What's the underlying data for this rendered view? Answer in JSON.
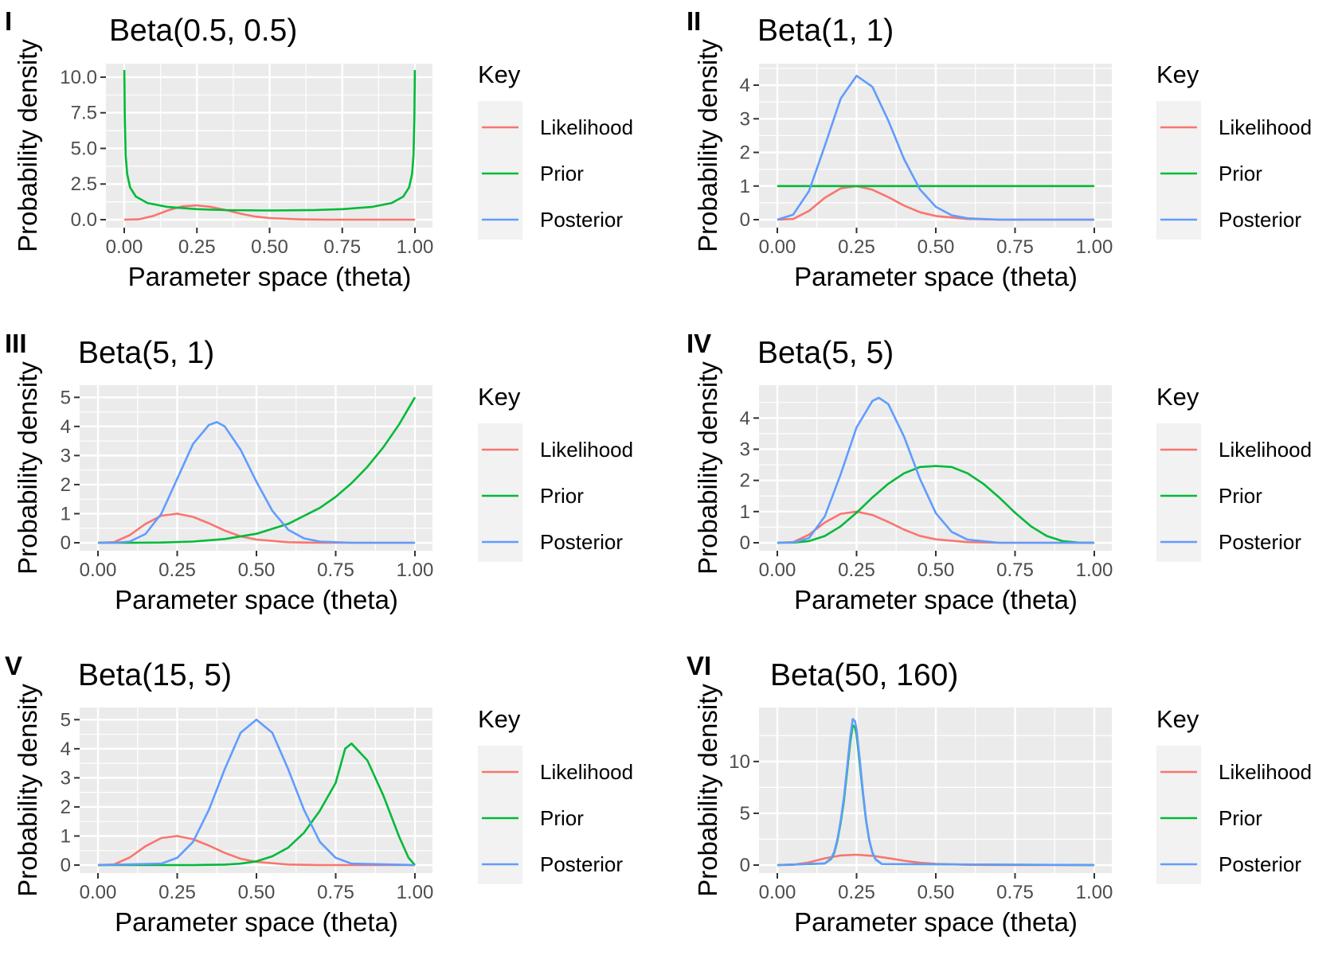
{
  "colors": {
    "likelihood": "#F8766D",
    "prior": "#00BA38",
    "posterior": "#619CFF",
    "panel_bg": "#EBEBEB",
    "grid": "#FFFFFF",
    "legend_key_bg": "#F2F2F2"
  },
  "chart_data": [
    {
      "type": "line",
      "tag": "I",
      "title": "Beta(0.5, 0.5)",
      "xlabel": "Parameter space (theta)",
      "ylabel": "Probability density",
      "xlim": [
        0,
        1
      ],
      "ylim": [
        0,
        10.5
      ],
      "xticks": [
        0,
        0.25,
        0.5,
        0.75,
        1
      ],
      "xtick_labels": [
        "0.00",
        "0.25",
        "0.50",
        "0.75",
        "1.00"
      ],
      "yticks": [
        0,
        2.5,
        5,
        7.5,
        10
      ],
      "ytick_labels": [
        "0.0",
        "2.5",
        "5.0",
        "7.5",
        "10.0"
      ],
      "legend": {
        "title": "Key",
        "position": "right",
        "entries": [
          "Likelihood",
          "Prior",
          "Posterior"
        ]
      },
      "grid": true,
      "series": [
        {
          "name": "Likelihood",
          "color": "likelihood",
          "x": [
            0,
            0.05,
            0.1,
            0.15,
            0.2,
            0.25,
            0.3,
            0.35,
            0.4,
            0.45,
            0.5,
            0.6,
            0.7,
            0.8,
            1.0
          ],
          "y": [
            0,
            0.02,
            0.26,
            0.65,
            0.93,
            1.0,
            0.89,
            0.67,
            0.42,
            0.22,
            0.11,
            0.02,
            0.0,
            0.0,
            0
          ]
        },
        {
          "name": "Prior",
          "color": "prior",
          "x": [
            0.0003,
            0.002,
            0.005,
            0.01,
            0.02,
            0.04,
            0.08,
            0.15,
            0.25,
            0.35,
            0.5,
            0.65,
            0.75,
            0.85,
            0.92,
            0.96,
            0.98,
            0.99,
            0.995,
            0.998,
            0.9997
          ],
          "y": [
            10.5,
            7.12,
            4.51,
            3.2,
            2.27,
            1.62,
            1.17,
            0.89,
            0.74,
            0.67,
            0.64,
            0.67,
            0.74,
            0.89,
            1.17,
            1.62,
            2.27,
            3.2,
            4.51,
            7.12,
            10.5
          ]
        },
        {
          "name": "Posterior",
          "color": "posterior",
          "x": [],
          "y": []
        }
      ]
    },
    {
      "type": "line",
      "tag": "II",
      "title": "Beta(1, 1)",
      "xlabel": "Parameter space (theta)",
      "ylabel": "Probability density",
      "xlim": [
        0,
        1
      ],
      "ylim": [
        0,
        4.45
      ],
      "xticks": [
        0,
        0.25,
        0.5,
        0.75,
        1
      ],
      "xtick_labels": [
        "0.00",
        "0.25",
        "0.50",
        "0.75",
        "1.00"
      ],
      "yticks": [
        0,
        1,
        2,
        3,
        4
      ],
      "ytick_labels": [
        "0",
        "1",
        "2",
        "3",
        "4"
      ],
      "legend": {
        "title": "Key",
        "position": "right",
        "entries": [
          "Likelihood",
          "Prior",
          "Posterior"
        ]
      },
      "grid": true,
      "series": [
        {
          "name": "Likelihood",
          "color": "likelihood",
          "x": [
            0,
            0.05,
            0.1,
            0.15,
            0.2,
            0.25,
            0.3,
            0.35,
            0.4,
            0.45,
            0.5,
            0.6,
            0.7,
            0.8,
            1.0
          ],
          "y": [
            0,
            0.02,
            0.26,
            0.65,
            0.93,
            1.0,
            0.89,
            0.67,
            0.42,
            0.22,
            0.11,
            0.02,
            0.0,
            0.0,
            0
          ]
        },
        {
          "name": "Prior",
          "color": "prior",
          "x": [
            0,
            1
          ],
          "y": [
            1,
            1
          ]
        },
        {
          "name": "Posterior",
          "color": "posterior",
          "x": [
            0,
            0.05,
            0.1,
            0.15,
            0.2,
            0.25,
            0.3,
            0.35,
            0.4,
            0.45,
            0.5,
            0.55,
            0.6,
            0.7,
            0.8,
            1.0
          ],
          "y": [
            0,
            0.15,
            0.85,
            2.2,
            3.6,
            4.28,
            3.95,
            2.95,
            1.8,
            0.9,
            0.38,
            0.13,
            0.04,
            0.0,
            0.0,
            0
          ]
        }
      ]
    },
    {
      "type": "line",
      "tag": "III",
      "title": "Beta(5, 1)",
      "xlabel": "Parameter space (theta)",
      "ylabel": "Probability density",
      "xlim": [
        0,
        1
      ],
      "ylim": [
        0,
        5.2
      ],
      "xticks": [
        0,
        0.25,
        0.5,
        0.75,
        1
      ],
      "xtick_labels": [
        "0.00",
        "0.25",
        "0.50",
        "0.75",
        "1.00"
      ],
      "yticks": [
        0,
        1,
        2,
        3,
        4,
        5
      ],
      "ytick_labels": [
        "0",
        "1",
        "2",
        "3",
        "4",
        "5"
      ],
      "legend": {
        "title": "Key",
        "position": "right",
        "entries": [
          "Likelihood",
          "Prior",
          "Posterior"
        ]
      },
      "grid": true,
      "series": [
        {
          "name": "Likelihood",
          "color": "likelihood",
          "x": [
            0,
            0.05,
            0.1,
            0.15,
            0.2,
            0.25,
            0.3,
            0.35,
            0.4,
            0.45,
            0.5,
            0.6,
            0.7,
            0.8,
            1.0
          ],
          "y": [
            0,
            0.02,
            0.26,
            0.65,
            0.93,
            1.0,
            0.89,
            0.67,
            0.42,
            0.22,
            0.11,
            0.02,
            0.0,
            0.0,
            0
          ]
        },
        {
          "name": "Prior",
          "color": "prior",
          "x": [
            0,
            0.1,
            0.2,
            0.3,
            0.4,
            0.5,
            0.6,
            0.7,
            0.75,
            0.8,
            0.85,
            0.9,
            0.95,
            1.0
          ],
          "y": [
            0,
            0.0005,
            0.008,
            0.04,
            0.13,
            0.31,
            0.65,
            1.2,
            1.58,
            2.05,
            2.61,
            3.28,
            4.07,
            5.0
          ]
        },
        {
          "name": "Posterior",
          "color": "posterior",
          "x": [
            0,
            0.05,
            0.1,
            0.15,
            0.2,
            0.25,
            0.3,
            0.35,
            0.375,
            0.4,
            0.45,
            0.5,
            0.55,
            0.6,
            0.65,
            0.7,
            0.8,
            1.0
          ],
          "y": [
            0,
            0.0,
            0.04,
            0.3,
            1.0,
            2.2,
            3.4,
            4.05,
            4.15,
            4.0,
            3.2,
            2.1,
            1.1,
            0.45,
            0.15,
            0.04,
            0.0,
            0
          ]
        }
      ]
    },
    {
      "type": "line",
      "tag": "IV",
      "title": "Beta(5, 5)",
      "xlabel": "Parameter space (theta)",
      "ylabel": "Probability density",
      "xlim": [
        0,
        1
      ],
      "ylim": [
        0,
        4.85
      ],
      "xticks": [
        0,
        0.25,
        0.5,
        0.75,
        1
      ],
      "xtick_labels": [
        "0.00",
        "0.25",
        "0.50",
        "0.75",
        "1.00"
      ],
      "yticks": [
        0,
        1,
        2,
        3,
        4
      ],
      "ytick_labels": [
        "0",
        "1",
        "2",
        "3",
        "4"
      ],
      "legend": {
        "title": "Key",
        "position": "right",
        "entries": [
          "Likelihood",
          "Prior",
          "Posterior"
        ]
      },
      "grid": true,
      "series": [
        {
          "name": "Likelihood",
          "color": "likelihood",
          "x": [
            0,
            0.05,
            0.1,
            0.15,
            0.2,
            0.25,
            0.3,
            0.35,
            0.4,
            0.45,
            0.5,
            0.6,
            0.7,
            0.8,
            1.0
          ],
          "y": [
            0,
            0.02,
            0.26,
            0.65,
            0.93,
            1.0,
            0.89,
            0.67,
            0.42,
            0.22,
            0.11,
            0.02,
            0.0,
            0.0,
            0
          ]
        },
        {
          "name": "Prior",
          "color": "prior",
          "x": [
            0,
            0.05,
            0.1,
            0.15,
            0.2,
            0.25,
            0.3,
            0.35,
            0.4,
            0.45,
            0.5,
            0.55,
            0.6,
            0.65,
            0.7,
            0.75,
            0.8,
            0.85,
            0.9,
            0.95,
            1.0
          ],
          "y": [
            0,
            0.0042,
            0.0531,
            0.2164,
            0.5284,
            0.9612,
            1.4525,
            1.8918,
            2.2286,
            2.4313,
            2.4609,
            2.4313,
            2.2286,
            1.8918,
            1.4525,
            0.9612,
            0.5284,
            0.2164,
            0.0531,
            0.0042,
            0
          ]
        },
        {
          "name": "Posterior",
          "color": "posterior",
          "x": [
            0,
            0.05,
            0.1,
            0.15,
            0.2,
            0.25,
            0.3,
            0.32,
            0.35,
            0.4,
            0.45,
            0.5,
            0.55,
            0.6,
            0.7,
            0.8,
            1.0
          ],
          "y": [
            0,
            0.01,
            0.15,
            0.85,
            2.2,
            3.7,
            4.55,
            4.65,
            4.45,
            3.4,
            2.05,
            0.95,
            0.35,
            0.1,
            0.0,
            0.0,
            0
          ]
        }
      ]
    },
    {
      "type": "line",
      "tag": "V",
      "title": "Beta(15, 5)",
      "xlabel": "Parameter space (theta)",
      "ylabel": "Probability density",
      "xlim": [
        0,
        1
      ],
      "ylim": [
        0,
        5.2
      ],
      "xticks": [
        0,
        0.25,
        0.5,
        0.75,
        1
      ],
      "xtick_labels": [
        "0.00",
        "0.25",
        "0.50",
        "0.75",
        "1.00"
      ],
      "yticks": [
        0,
        1,
        2,
        3,
        4,
        5
      ],
      "ytick_labels": [
        "0",
        "1",
        "2",
        "3",
        "4",
        "5"
      ],
      "legend": {
        "title": "Key",
        "position": "right",
        "entries": [
          "Likelihood",
          "Prior",
          "Posterior"
        ]
      },
      "grid": true,
      "series": [
        {
          "name": "Likelihood",
          "color": "likelihood",
          "x": [
            0,
            0.05,
            0.1,
            0.15,
            0.2,
            0.25,
            0.3,
            0.35,
            0.4,
            0.45,
            0.5,
            0.6,
            0.7,
            0.8,
            1.0
          ],
          "y": [
            0,
            0.02,
            0.26,
            0.65,
            0.93,
            1.0,
            0.89,
            0.67,
            0.42,
            0.22,
            0.11,
            0.02,
            0.0,
            0.0,
            0
          ]
        },
        {
          "name": "Prior",
          "color": "prior",
          "x": [
            0,
            0.3,
            0.4,
            0.45,
            0.5,
            0.55,
            0.6,
            0.65,
            0.7,
            0.75,
            0.78,
            0.8,
            0.85,
            0.9,
            0.95,
            0.98,
            1.0
          ],
          "y": [
            0,
            0.0006,
            0.017,
            0.05,
            0.13,
            0.3,
            0.6,
            1.11,
            1.87,
            2.83,
            4.0,
            4.18,
            3.6,
            2.4,
            0.98,
            0.25,
            0
          ]
        },
        {
          "name": "Posterior",
          "color": "posterior",
          "x": [
            0,
            0.2,
            0.25,
            0.3,
            0.35,
            0.4,
            0.45,
            0.5,
            0.55,
            0.6,
            0.65,
            0.7,
            0.75,
            0.8,
            1.0
          ],
          "y": [
            0,
            0.05,
            0.25,
            0.8,
            1.9,
            3.3,
            4.55,
            5.0,
            4.55,
            3.3,
            1.9,
            0.8,
            0.25,
            0.05,
            0
          ]
        }
      ]
    },
    {
      "type": "line",
      "tag": "VI",
      "title": "Beta(50, 160)",
      "xlabel": "Parameter space (theta)",
      "ylabel": "Probability density",
      "xlim": [
        0,
        1
      ],
      "ylim": [
        0,
        14.6
      ],
      "xticks": [
        0,
        0.25,
        0.5,
        0.75,
        1
      ],
      "xtick_labels": [
        "0.00",
        "0.25",
        "0.50",
        "0.75",
        "1.00"
      ],
      "yticks": [
        0,
        5,
        10
      ],
      "ytick_labels": [
        "0",
        "5",
        "10"
      ],
      "legend": {
        "title": "Key",
        "position": "right",
        "entries": [
          "Likelihood",
          "Prior",
          "Posterior"
        ]
      },
      "grid": true,
      "series": [
        {
          "name": "Likelihood",
          "color": "likelihood",
          "x": [
            0,
            0.05,
            0.1,
            0.15,
            0.2,
            0.25,
            0.3,
            0.35,
            0.4,
            0.45,
            0.5,
            0.6,
            0.7,
            0.8,
            1.0
          ],
          "y": [
            0,
            0.02,
            0.26,
            0.65,
            0.93,
            1.0,
            0.89,
            0.67,
            0.42,
            0.22,
            0.11,
            0.02,
            0.0,
            0.0,
            0
          ]
        },
        {
          "name": "Prior",
          "color": "prior",
          "x": [
            0,
            0.15,
            0.17,
            0.18,
            0.19,
            0.2,
            0.21,
            0.22,
            0.23,
            0.238,
            0.245,
            0.25,
            0.26,
            0.27,
            0.28,
            0.29,
            0.3,
            0.31,
            0.33,
            1.0
          ],
          "y": [
            0,
            0.15,
            0.6,
            1.2,
            2.4,
            4.1,
            6.2,
            9.0,
            11.8,
            13.5,
            13.3,
            12.6,
            9.8,
            6.9,
            4.3,
            2.4,
            1.2,
            0.55,
            0.1,
            0
          ]
        },
        {
          "name": "Posterior",
          "color": "posterior",
          "x": [
            0,
            0.15,
            0.17,
            0.18,
            0.19,
            0.2,
            0.21,
            0.22,
            0.23,
            0.238,
            0.245,
            0.25,
            0.26,
            0.27,
            0.28,
            0.29,
            0.3,
            0.31,
            0.33,
            1.0
          ],
          "y": [
            0,
            0.17,
            0.65,
            1.3,
            2.55,
            4.3,
            6.5,
            9.4,
            12.3,
            14.1,
            13.9,
            13.1,
            10.2,
            7.1,
            4.4,
            2.45,
            1.2,
            0.55,
            0.1,
            0
          ]
        }
      ]
    }
  ]
}
